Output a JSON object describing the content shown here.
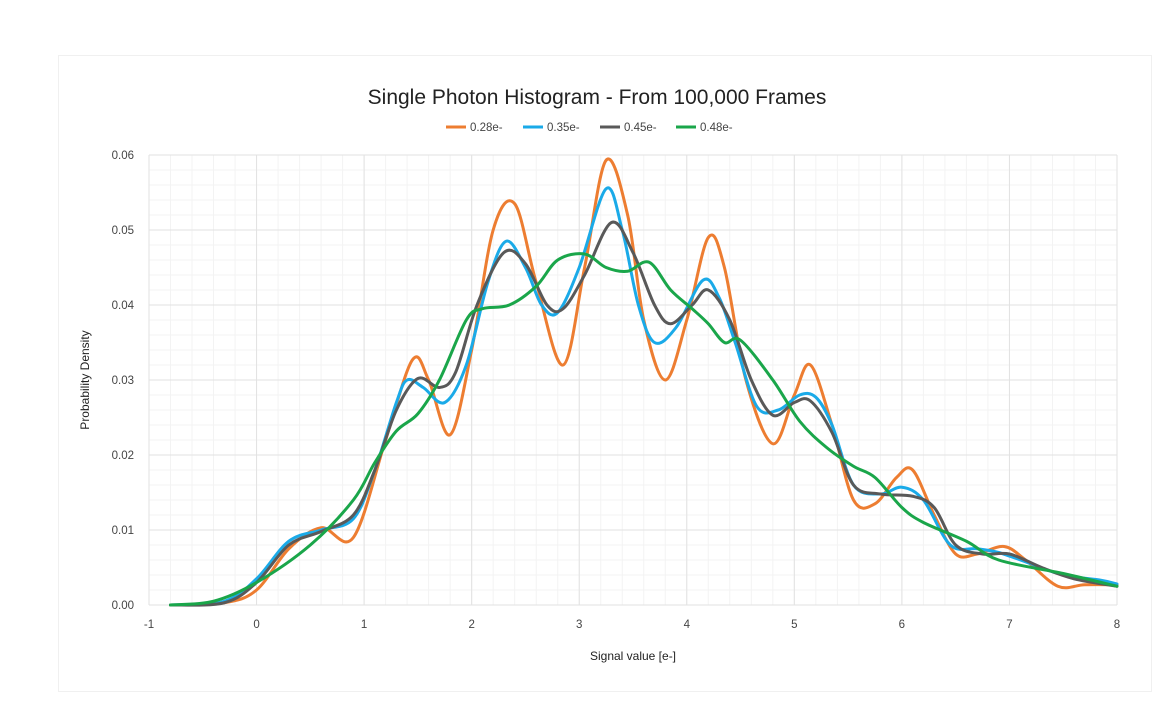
{
  "chart_data": {
    "type": "line",
    "title": "Single Photon Histogram - From 100,000 Frames",
    "xlabel": "Signal value [e-]",
    "ylabel": "Probability Density",
    "xlim": [
      -1,
      8
    ],
    "ylim": [
      0,
      0.06
    ],
    "x_ticks": [
      "-1",
      "0",
      "1",
      "2",
      "3",
      "4",
      "5",
      "6",
      "7",
      "8"
    ],
    "y_ticks": [
      "0.00",
      "0.01",
      "0.02",
      "0.03",
      "0.04",
      "0.05",
      "0.06"
    ],
    "grid": true,
    "legend_position": "top",
    "smooth": true,
    "series": [
      {
        "name": "0.28e-",
        "color": "#ED7D31",
        "points": [
          [
            -0.8,
            0
          ],
          [
            -0.3,
            0.0003
          ],
          [
            0,
            0.002
          ],
          [
            0.3,
            0.0075
          ],
          [
            0.6,
            0.0103
          ],
          [
            0.9,
            0.009
          ],
          [
            1.2,
            0.022
          ],
          [
            1.45,
            0.0327
          ],
          [
            1.6,
            0.03
          ],
          [
            1.8,
            0.0227
          ],
          [
            2.0,
            0.034
          ],
          [
            2.2,
            0.05
          ],
          [
            2.4,
            0.0535
          ],
          [
            2.6,
            0.043
          ],
          [
            2.85,
            0.032
          ],
          [
            3.05,
            0.045
          ],
          [
            3.25,
            0.0593
          ],
          [
            3.45,
            0.052
          ],
          [
            3.6,
            0.038
          ],
          [
            3.8,
            0.03
          ],
          [
            4.0,
            0.038
          ],
          [
            4.2,
            0.049
          ],
          [
            4.35,
            0.045
          ],
          [
            4.55,
            0.03
          ],
          [
            4.8,
            0.0215
          ],
          [
            5.0,
            0.028
          ],
          [
            5.15,
            0.032
          ],
          [
            5.35,
            0.024
          ],
          [
            5.55,
            0.014
          ],
          [
            5.75,
            0.0135
          ],
          [
            5.95,
            0.017
          ],
          [
            6.1,
            0.018
          ],
          [
            6.3,
            0.012
          ],
          [
            6.5,
            0.0068
          ],
          [
            6.7,
            0.0068
          ],
          [
            6.95,
            0.0078
          ],
          [
            7.15,
            0.006
          ],
          [
            7.45,
            0.0025
          ],
          [
            7.7,
            0.0027
          ],
          [
            8,
            0.0027
          ]
        ]
      },
      {
        "name": "0.35e-",
        "color": "#1AAAE8",
        "points": [
          [
            -0.8,
            0
          ],
          [
            -0.3,
            0.0005
          ],
          [
            0,
            0.0035
          ],
          [
            0.3,
            0.0085
          ],
          [
            0.6,
            0.01
          ],
          [
            0.9,
            0.0115
          ],
          [
            1.1,
            0.018
          ],
          [
            1.3,
            0.027
          ],
          [
            1.4,
            0.03
          ],
          [
            1.55,
            0.029
          ],
          [
            1.75,
            0.027
          ],
          [
            1.95,
            0.032
          ],
          [
            2.15,
            0.043
          ],
          [
            2.32,
            0.0485
          ],
          [
            2.5,
            0.045
          ],
          [
            2.65,
            0.04
          ],
          [
            2.8,
            0.039
          ],
          [
            3.0,
            0.045
          ],
          [
            3.25,
            0.0555
          ],
          [
            3.4,
            0.05
          ],
          [
            3.55,
            0.04
          ],
          [
            3.7,
            0.035
          ],
          [
            3.9,
            0.037
          ],
          [
            4.15,
            0.0433
          ],
          [
            4.3,
            0.041
          ],
          [
            4.45,
            0.035
          ],
          [
            4.65,
            0.0265
          ],
          [
            4.85,
            0.026
          ],
          [
            5.05,
            0.028
          ],
          [
            5.2,
            0.0277
          ],
          [
            5.35,
            0.024
          ],
          [
            5.55,
            0.016
          ],
          [
            5.8,
            0.0148
          ],
          [
            6.0,
            0.0157
          ],
          [
            6.2,
            0.014
          ],
          [
            6.45,
            0.008
          ],
          [
            6.7,
            0.0075
          ],
          [
            6.9,
            0.007
          ],
          [
            7.2,
            0.0055
          ],
          [
            7.5,
            0.004
          ],
          [
            7.85,
            0.0033
          ],
          [
            8,
            0.0028
          ]
        ]
      },
      {
        "name": "0.45e-",
        "color": "#595959",
        "points": [
          [
            -0.8,
            0
          ],
          [
            -0.3,
            0.0003
          ],
          [
            0,
            0.003
          ],
          [
            0.3,
            0.008
          ],
          [
            0.6,
            0.0098
          ],
          [
            0.9,
            0.012
          ],
          [
            1.1,
            0.018
          ],
          [
            1.3,
            0.026
          ],
          [
            1.5,
            0.0302
          ],
          [
            1.7,
            0.029
          ],
          [
            1.85,
            0.031
          ],
          [
            2.05,
            0.04
          ],
          [
            2.3,
            0.047
          ],
          [
            2.5,
            0.0455
          ],
          [
            2.7,
            0.04
          ],
          [
            2.85,
            0.0395
          ],
          [
            3.05,
            0.044
          ],
          [
            3.3,
            0.051
          ],
          [
            3.5,
            0.047
          ],
          [
            3.7,
            0.04
          ],
          [
            3.85,
            0.0375
          ],
          [
            4.05,
            0.04
          ],
          [
            4.2,
            0.042
          ],
          [
            4.4,
            0.038
          ],
          [
            4.6,
            0.03
          ],
          [
            4.8,
            0.0253
          ],
          [
            5.0,
            0.027
          ],
          [
            5.15,
            0.0272
          ],
          [
            5.35,
            0.023
          ],
          [
            5.55,
            0.016
          ],
          [
            5.8,
            0.0148
          ],
          [
            6.1,
            0.0145
          ],
          [
            6.3,
            0.013
          ],
          [
            6.5,
            0.008
          ],
          [
            6.75,
            0.0068
          ],
          [
            7.0,
            0.0068
          ],
          [
            7.3,
            0.005
          ],
          [
            7.6,
            0.0035
          ],
          [
            8,
            0.0025
          ]
        ]
      },
      {
        "name": "0.48e-",
        "color": "#1AA64A",
        "points": [
          [
            -0.8,
            0
          ],
          [
            -0.4,
            0.0005
          ],
          [
            0,
            0.003
          ],
          [
            0.5,
            0.008
          ],
          [
            0.9,
            0.014
          ],
          [
            1.1,
            0.019
          ],
          [
            1.3,
            0.0232
          ],
          [
            1.5,
            0.0255
          ],
          [
            1.7,
            0.03
          ],
          [
            1.95,
            0.038
          ],
          [
            2.1,
            0.0395
          ],
          [
            2.35,
            0.04
          ],
          [
            2.6,
            0.0425
          ],
          [
            2.8,
            0.046
          ],
          [
            3.05,
            0.0468
          ],
          [
            3.25,
            0.045
          ],
          [
            3.45,
            0.0445
          ],
          [
            3.65,
            0.0457
          ],
          [
            3.85,
            0.042
          ],
          [
            4.05,
            0.0395
          ],
          [
            4.2,
            0.0375
          ],
          [
            4.35,
            0.035
          ],
          [
            4.5,
            0.0353
          ],
          [
            4.8,
            0.03
          ],
          [
            5.05,
            0.0245
          ],
          [
            5.3,
            0.021
          ],
          [
            5.55,
            0.0185
          ],
          [
            5.75,
            0.017
          ],
          [
            6.0,
            0.013
          ],
          [
            6.2,
            0.011
          ],
          [
            6.6,
            0.0085
          ],
          [
            6.9,
            0.006
          ],
          [
            7.5,
            0.0042
          ],
          [
            8,
            0.0025
          ]
        ]
      }
    ]
  }
}
